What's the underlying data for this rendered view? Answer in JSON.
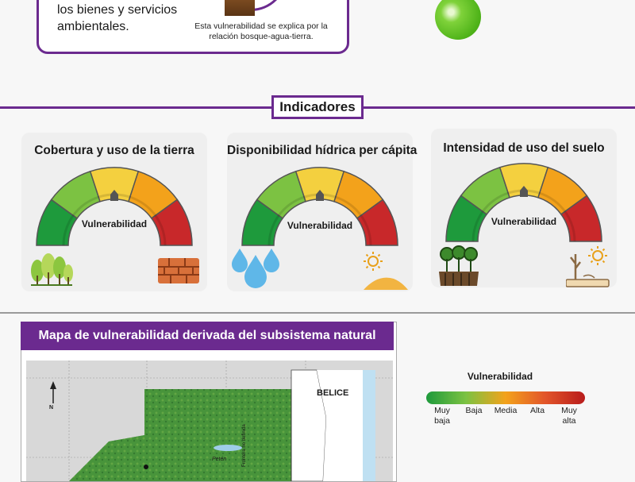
{
  "top": {
    "text_line1": "los bienes y servicios",
    "text_line2": "ambientales.",
    "caption_line1": "Esta vulnerabilidad se explica por la",
    "caption_line2": "relación bosque-agua-tierra."
  },
  "section": {
    "title": "Indicadores"
  },
  "indicators": [
    {
      "title": "Cobertura y uso de la tierra",
      "gauge_label": "Vulnerabilidad",
      "level": 0.5
    },
    {
      "title": "Disponibilidad hídrica per cápita",
      "gauge_label": "Vulnerabilidad",
      "level": 0.5
    },
    {
      "title": "Intensidad de uso del suelo",
      "gauge_label": "Vulnerabilidad",
      "level": 0.5
    }
  ],
  "map": {
    "title": "Mapa de vulnerabilidad derivada del subsistema natural",
    "country_label": "BELICE",
    "region_label": "Petén",
    "border_label": "Frontera no definida",
    "north_label": "N"
  },
  "legend": {
    "title": "Vulnerabilidad",
    "items": [
      {
        "label_line1": "Muy",
        "label_line2": "baja",
        "color": "#1e9a3c"
      },
      {
        "label_line1": "Baja",
        "label_line2": "",
        "color": "#7cc242"
      },
      {
        "label_line1": "Media",
        "label_line2": "",
        "color": "#f3a21b"
      },
      {
        "label_line1": "Alta",
        "label_line2": "",
        "color": "#e2552a"
      },
      {
        "label_line1": "Muy",
        "label_line2": "alta",
        "color": "#b81c1c"
      }
    ]
  },
  "gauge_colors": [
    "#1e9a3c",
    "#7cc242",
    "#f4d03f",
    "#f3a21b",
    "#c8282a"
  ]
}
